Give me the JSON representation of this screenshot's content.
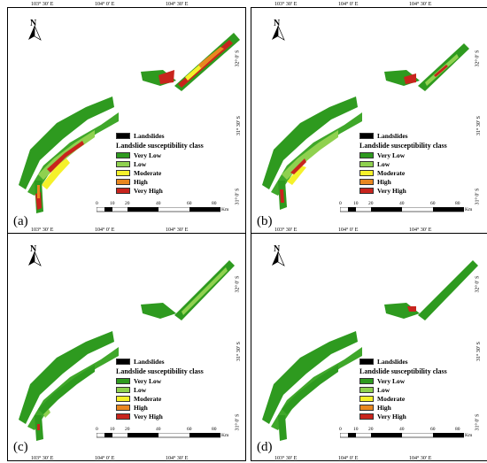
{
  "panels": [
    {
      "label": "(a)"
    },
    {
      "label": "(b)"
    },
    {
      "label": "(c)"
    },
    {
      "label": "(d)"
    }
  ],
  "coords": {
    "top": [
      "103° 30′ E",
      "104° 0′ E",
      "104° 30′ E"
    ],
    "bottom": [
      "103° 30′ E",
      "104° 0′ E",
      "104° 30′ E"
    ],
    "right": [
      "32° 0′ S",
      "31° 30′ S",
      "31° 0′ S"
    ],
    "left": [
      "32° 0′ S",
      "31° 30′ S",
      "31° 0′ S"
    ]
  },
  "north": "N",
  "legend": {
    "landslides": "Landslides",
    "title": "Landslide susceptibility class",
    "classes": [
      {
        "label": "Very Low",
        "color": "#2e9a1f"
      },
      {
        "label": "Low",
        "color": "#8fd14f"
      },
      {
        "label": "Moderate",
        "color": "#f5f12a"
      },
      {
        "label": "High",
        "color": "#e9871f"
      },
      {
        "label": "Very High",
        "color": "#c8241d"
      }
    ]
  },
  "scalebar": {
    "ticks": [
      "0",
      "10",
      "20",
      "40",
      "60",
      "80"
    ],
    "unit": "Km"
  }
}
